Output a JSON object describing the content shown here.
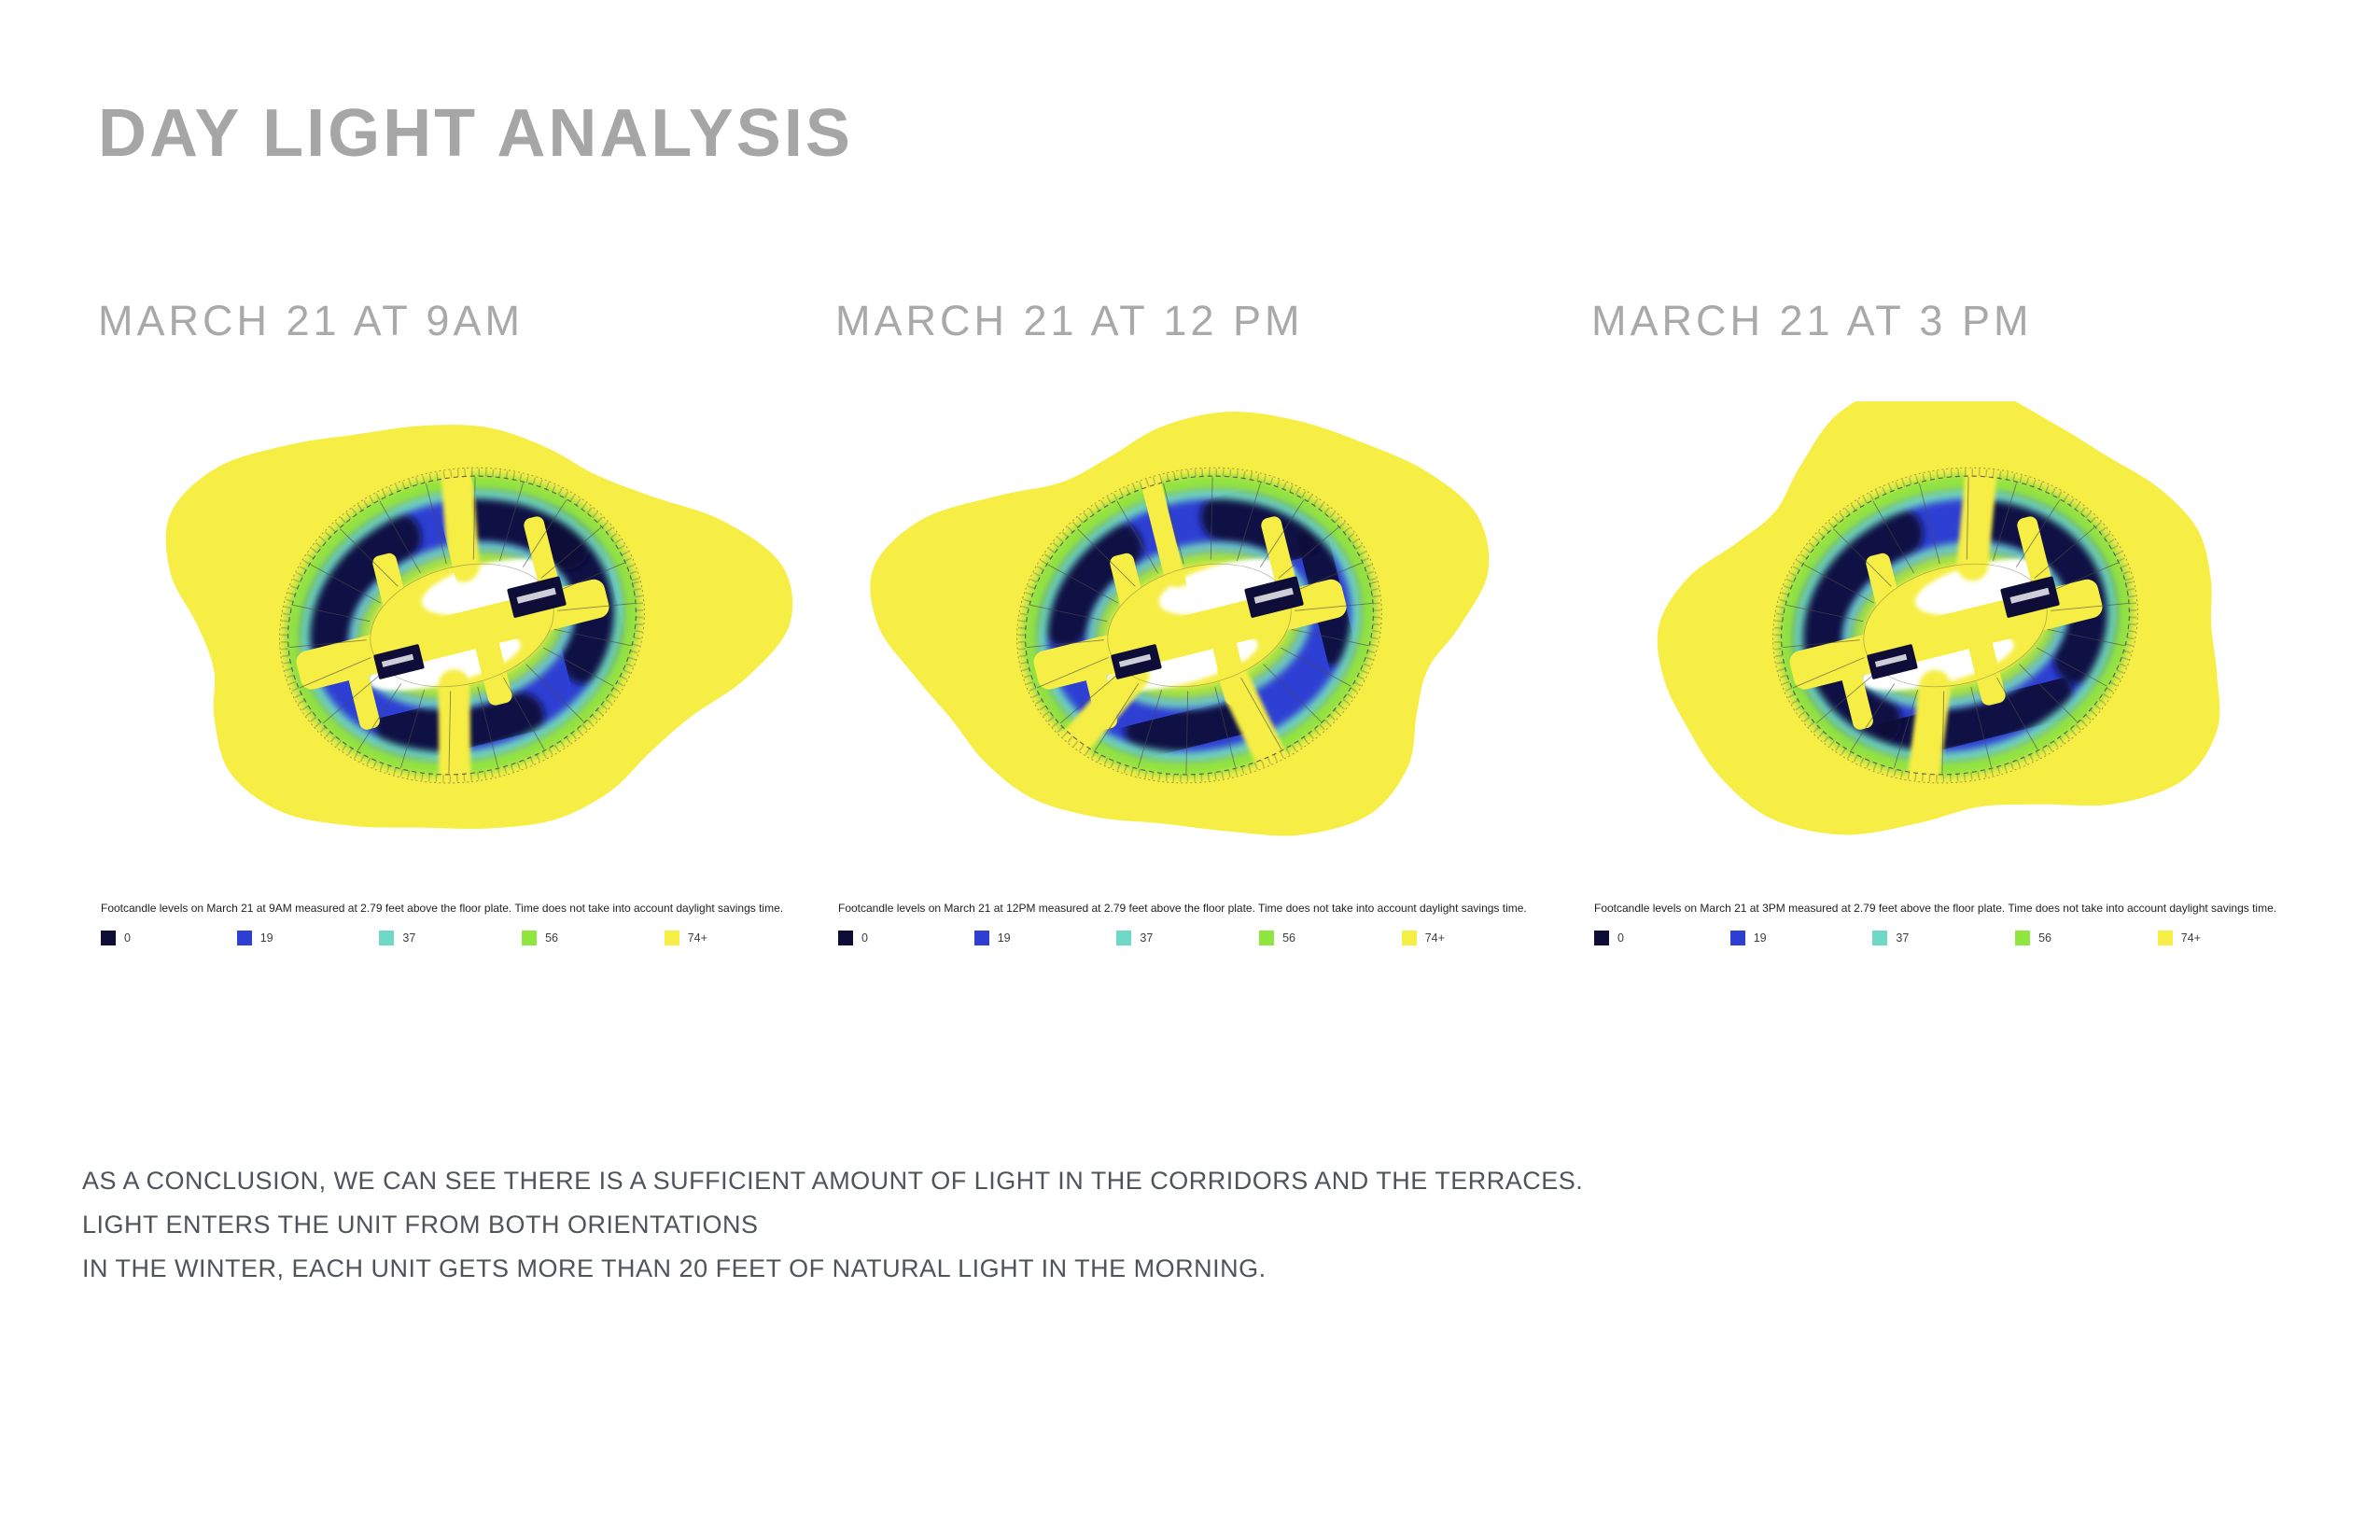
{
  "slide": {
    "title": "DAY LIGHT ANALYSIS"
  },
  "panels": [
    {
      "heading": "MARCH 21 AT 9AM",
      "variant": 1,
      "caption": "Footcandle levels on March 21 at 9AM measured at 2.79 feet above the floor plate. Time does not take into account daylight savings time.",
      "legend": [
        {
          "label": "0",
          "color": "#0d0d38"
        },
        {
          "label": "19",
          "color": "#2e3fd4"
        },
        {
          "label": "37",
          "color": "#70d9c5"
        },
        {
          "label": "56",
          "color": "#8ee63e"
        },
        {
          "label": "74+",
          "color": "#f6ee45"
        }
      ]
    },
    {
      "heading": "MARCH 21 AT 12 PM",
      "variant": 2,
      "caption": "Footcandle levels on March 21 at 12PM measured at 2.79 feet above the floor plate. Time does not take into account daylight savings time.",
      "legend": [
        {
          "label": "0",
          "color": "#0d0d38"
        },
        {
          "label": "19",
          "color": "#2e3fd4"
        },
        {
          "label": "37",
          "color": "#70d9c5"
        },
        {
          "label": "56",
          "color": "#8ee63e"
        },
        {
          "label": "74+",
          "color": "#f6ee45"
        }
      ]
    },
    {
      "heading": "MARCH 21 AT 3 PM",
      "variant": 3,
      "caption": "Footcandle levels on March 21 at 3PM measured at 2.79 feet above the floor plate. Time does not take into account daylight savings time.",
      "legend": [
        {
          "label": "0",
          "color": "#0d0d38"
        },
        {
          "label": "19",
          "color": "#2e3fd4"
        },
        {
          "label": "37",
          "color": "#70d9c5"
        },
        {
          "label": "56",
          "color": "#8ee63e"
        },
        {
          "label": "74+",
          "color": "#f6ee45"
        }
      ]
    }
  ],
  "conclusion": {
    "lines": [
      "AS A CONCLUSION, WE CAN SEE THERE IS A SUFFICIENT AMOUNT OF LIGHT IN THE CORRIDORS AND THE TERRACES.",
      "LIGHT ENTERS THE UNIT FROM BOTH ORIENTATIONS",
      "IN THE WINTER, EACH UNIT GETS MORE THAN 20 FEET OF NATURAL LIGHT IN THE MORNING."
    ]
  }
}
